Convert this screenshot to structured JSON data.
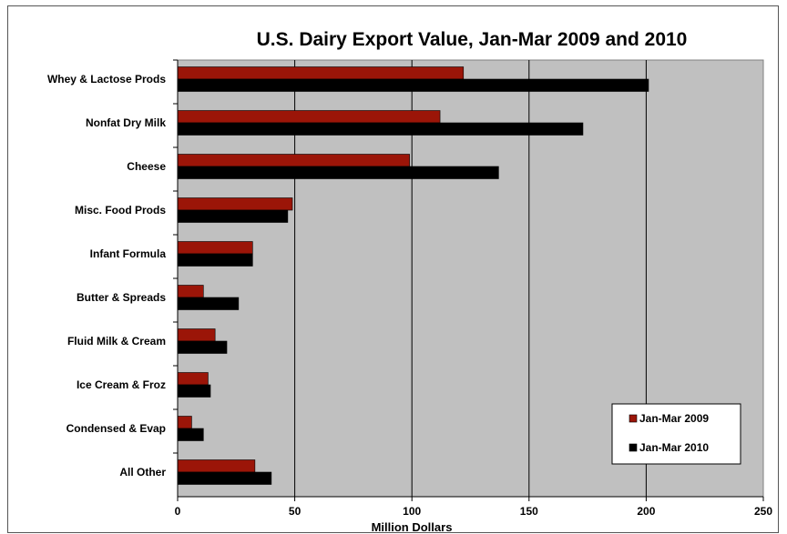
{
  "chart_data": {
    "type": "bar",
    "orientation": "horizontal",
    "title": "U.S. Dairy Export Value, Jan-Mar 2009 and 2010",
    "xlabel": "Million Dollars",
    "ylabel": "",
    "xlim": [
      0,
      250
    ],
    "x_ticks": [
      0,
      50,
      100,
      150,
      200,
      250
    ],
    "grid": "vertical",
    "legend_position": "bottom-right",
    "categories": [
      "Whey & Lactose Prods",
      "Nonfat Dry Milk",
      "Cheese",
      "Misc. Food Prods",
      "Infant Formula",
      "Butter & Spreads",
      "Fluid Milk & Cream",
      "Ice Cream & Froz",
      "Condensed & Evap",
      "All Other"
    ],
    "series": [
      {
        "name": "Jan-Mar 2009",
        "color": "#9b1508",
        "values": [
          122,
          112,
          99,
          49,
          32,
          11,
          16,
          13,
          6,
          33
        ]
      },
      {
        "name": "Jan-Mar 2010",
        "color": "#000000",
        "values": [
          201,
          173,
          137,
          47,
          32,
          26,
          21,
          14,
          11,
          40
        ]
      }
    ],
    "plot_background": "#c0c0c0"
  }
}
